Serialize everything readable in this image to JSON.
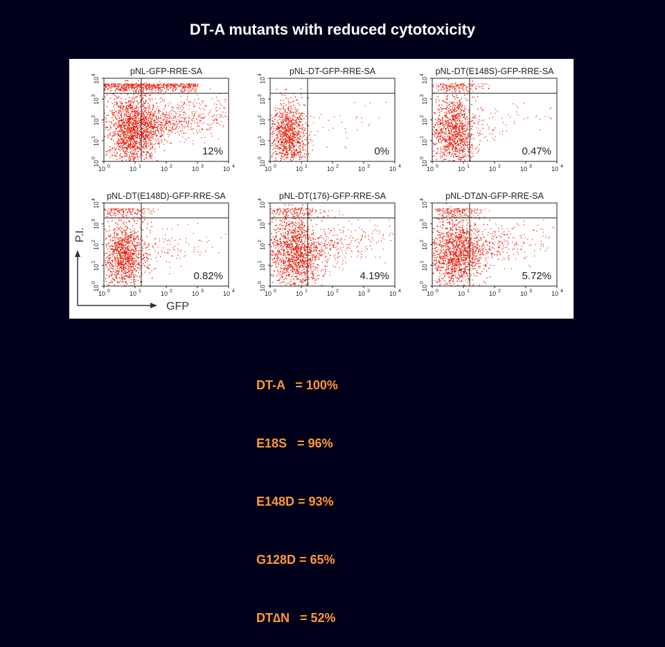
{
  "slide": {
    "title": "DT-A mutants with reduced cytotoxicity",
    "background_color": "#00001a"
  },
  "figure": {
    "y_axis_label": "P.I.",
    "x_axis_label": "GFP",
    "tick_labels": [
      "10",
      "10",
      "10",
      "10",
      "10"
    ],
    "tick_exponents": [
      "0",
      "1",
      "2",
      "3",
      "4"
    ],
    "dot_color": "#e8200c",
    "panels": [
      {
        "title": "pNL-GFP-RRE-SA",
        "percent": "12%"
      },
      {
        "title": "pNL-DT-GFP-RRE-SA",
        "percent": "0%"
      },
      {
        "title": "pNL-DT(E148S)-GFP-RRE-SA",
        "percent": "0.47%"
      },
      {
        "title": "pNL-DT(E148D)-GFP-RRE-SA",
        "percent": "0.82%"
      },
      {
        "title": "pNL-DT(176)-GFP-RRE-SA",
        "percent": "4.19%"
      },
      {
        "title": "pNL-DT∆N-GFP-RRE-SA",
        "percent": "5.72%"
      }
    ]
  },
  "stats": {
    "color": "#ff9933",
    "lines": [
      "DT-A   = 100%",
      "E18S   = 96%",
      "E148D = 93%",
      "G128D = 65%",
      "DT∆N   = 52%"
    ]
  }
}
